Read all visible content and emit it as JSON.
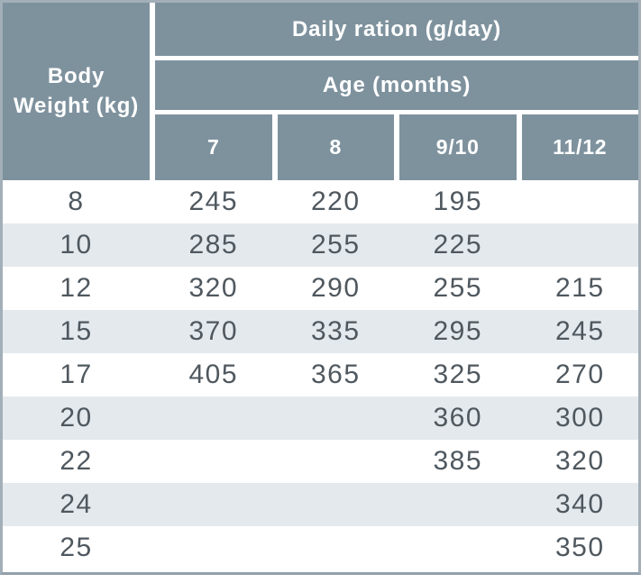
{
  "table": {
    "title": "Daily ration (g/day)",
    "subtitle": "Age (months)",
    "row_header": "Body\nWeight (kg)",
    "age_columns": [
      "7",
      "8",
      "9/10",
      "11/12"
    ],
    "rows": [
      {
        "weight": "8",
        "values": [
          "245",
          "220",
          "195",
          ""
        ]
      },
      {
        "weight": "10",
        "values": [
          "285",
          "255",
          "225",
          ""
        ]
      },
      {
        "weight": "12",
        "values": [
          "320",
          "290",
          "255",
          "215"
        ]
      },
      {
        "weight": "15",
        "values": [
          "370",
          "335",
          "295",
          "245"
        ]
      },
      {
        "weight": "17",
        "values": [
          "405",
          "365",
          "325",
          "270"
        ]
      },
      {
        "weight": "20",
        "values": [
          "",
          "",
          "360",
          "300"
        ]
      },
      {
        "weight": "22",
        "values": [
          "",
          "",
          "385",
          "320"
        ]
      },
      {
        "weight": "24",
        "values": [
          "",
          "",
          "",
          "340"
        ]
      },
      {
        "weight": "25",
        "values": [
          "",
          "",
          "",
          "350"
        ]
      }
    ],
    "colors": {
      "header_bg": "#7e929e",
      "stripe_bg": "#e4e9ed",
      "data_text": "#4f585f",
      "header_text": "#ffffff",
      "border": "#a2afb8"
    }
  },
  "chart_data": {
    "type": "table",
    "title": "Daily ration (g/day)",
    "column_group_label": "Age (months)",
    "row_label": "Body Weight (kg)",
    "columns": [
      "7",
      "8",
      "9/10",
      "11/12"
    ],
    "rows": [
      {
        "body_weight_kg": 8,
        "daily_ration_g_per_day": [
          245,
          220,
          195,
          null
        ]
      },
      {
        "body_weight_kg": 10,
        "daily_ration_g_per_day": [
          285,
          255,
          225,
          null
        ]
      },
      {
        "body_weight_kg": 12,
        "daily_ration_g_per_day": [
          320,
          290,
          255,
          215
        ]
      },
      {
        "body_weight_kg": 15,
        "daily_ration_g_per_day": [
          370,
          335,
          295,
          245
        ]
      },
      {
        "body_weight_kg": 17,
        "daily_ration_g_per_day": [
          405,
          365,
          325,
          270
        ]
      },
      {
        "body_weight_kg": 20,
        "daily_ration_g_per_day": [
          null,
          null,
          360,
          300
        ]
      },
      {
        "body_weight_kg": 22,
        "daily_ration_g_per_day": [
          null,
          null,
          385,
          320
        ]
      },
      {
        "body_weight_kg": 24,
        "daily_ration_g_per_day": [
          null,
          null,
          null,
          340
        ]
      },
      {
        "body_weight_kg": 25,
        "daily_ration_g_per_day": [
          null,
          null,
          null,
          350
        ]
      }
    ]
  }
}
